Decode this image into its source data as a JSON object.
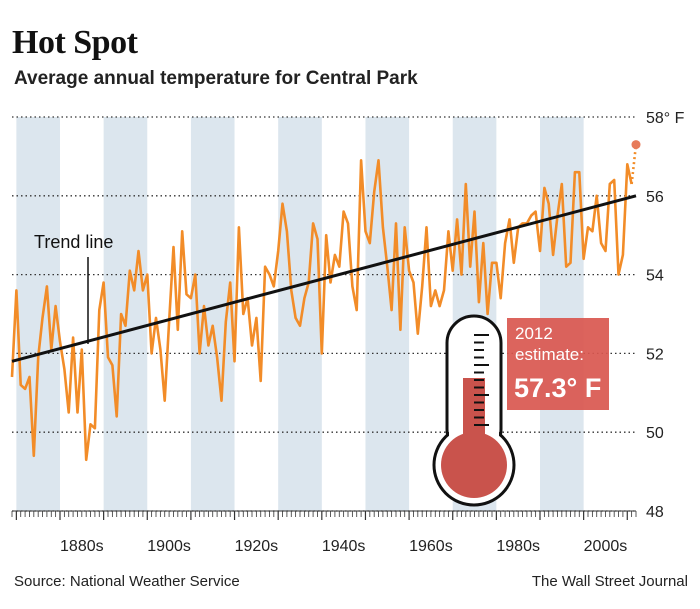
{
  "header": {
    "title": "Hot Spot",
    "subtitle": "Average annual temperature for Central Park"
  },
  "footer": {
    "source": "Source: National Weather Service",
    "credit": "The Wall Street Journal"
  },
  "annotations": {
    "trend_label": "Trend line",
    "estimate_year": "2012",
    "estimate_label": "estimate:",
    "estimate_value": "57.3° F"
  },
  "colors": {
    "series": "#f28c28",
    "trend": "#111111",
    "band": "#dce6ee",
    "callout": "#d9574f",
    "thermometer": "#c9534c"
  },
  "icons": {
    "thermometer": "thermometer-icon"
  },
  "chart_data": {
    "type": "line",
    "title": "Hot Spot",
    "subtitle": "Average annual temperature for Central Park",
    "xlim": [
      1869,
      2012
    ],
    "ylim": [
      48,
      58
    ],
    "y_ticks": [
      {
        "value": 58,
        "label": "58° F"
      },
      {
        "value": 56,
        "label": "56"
      },
      {
        "value": 54,
        "label": "54"
      },
      {
        "value": 52,
        "label": "52"
      },
      {
        "value": 50,
        "label": "50"
      },
      {
        "value": 48,
        "label": "48"
      }
    ],
    "x_ticks": [
      {
        "value": 1880,
        "label": "1880s"
      },
      {
        "value": 1900,
        "label": "1900s"
      },
      {
        "value": 1920,
        "label": "1920s"
      },
      {
        "value": 1940,
        "label": "1940s"
      },
      {
        "value": 1960,
        "label": "1960s"
      },
      {
        "value": 1980,
        "label": "1980s"
      },
      {
        "value": 2000,
        "label": "2000s"
      }
    ],
    "decade_bands": [
      1870,
      1890,
      1910,
      1930,
      1950,
      1970,
      1990
    ],
    "grid": "horizontal dotted",
    "series": [
      {
        "x": [
          1869,
          1870,
          1871,
          1872,
          1873,
          1874,
          1875,
          1876,
          1877,
          1878,
          1879,
          1880,
          1881,
          1882,
          1883,
          1884,
          1885,
          1886,
          1887,
          1888,
          1889,
          1890,
          1891,
          1892,
          1893,
          1894,
          1895,
          1896,
          1897,
          1898,
          1899,
          1900,
          1901,
          1902,
          1903,
          1904,
          1905,
          1906,
          1907,
          1908,
          1909,
          1910,
          1911,
          1912,
          1913,
          1914,
          1915,
          1916,
          1917,
          1918,
          1919,
          1920,
          1921,
          1922,
          1923,
          1924,
          1925,
          1926,
          1927,
          1928,
          1929,
          1930,
          1931,
          1932,
          1933,
          1934,
          1935,
          1936,
          1937,
          1938,
          1939,
          1940,
          1941,
          1942,
          1943,
          1944,
          1945,
          1946,
          1947,
          1948,
          1949,
          1950,
          1951,
          1952,
          1953,
          1954,
          1955,
          1956,
          1957,
          1958,
          1959,
          1960,
          1961,
          1962,
          1963,
          1964,
          1965,
          1966,
          1967,
          1968,
          1969,
          1970,
          1971,
          1972,
          1973,
          1974,
          1975,
          1976,
          1977,
          1978,
          1979,
          1980,
          1981,
          1982,
          1983,
          1984,
          1985,
          1986,
          1987,
          1988,
          1989,
          1990,
          1991,
          1992,
          1993,
          1994,
          1995,
          1996,
          1997,
          1998,
          1999,
          2000,
          2001,
          2002,
          2003,
          2004,
          2005,
          2006,
          2007,
          2008,
          2009,
          2010,
          2011
        ],
        "values": [
          51.4,
          53.6,
          51.2,
          51.1,
          51.4,
          49.4,
          51.9,
          52.9,
          53.7,
          52.1,
          53.2,
          52.3,
          51.6,
          50.5,
          52.4,
          50.5,
          52.1,
          49.3,
          50.2,
          50.1,
          53.1,
          53.8,
          51.9,
          51.7,
          50.4,
          53.0,
          52.7,
          54.1,
          53.6,
          54.6,
          53.6,
          54.0,
          52.0,
          52.9,
          52.1,
          50.8,
          52.8,
          54.7,
          52.6,
          55.1,
          53.5,
          53.4,
          54.0,
          52.0,
          53.2,
          52.2,
          52.7,
          51.9,
          50.8,
          52.8,
          53.8,
          51.8,
          55.2,
          53.0,
          53.4,
          52.2,
          52.9,
          51.3,
          54.2,
          54.0,
          53.7,
          54.6,
          55.8,
          55.1,
          53.6,
          52.9,
          52.7,
          53.4,
          53.8,
          55.3,
          54.9,
          52.0,
          55.0,
          53.8,
          54.5,
          54.2,
          55.6,
          55.3,
          53.7,
          53.1,
          56.9,
          55.1,
          54.8,
          56.1,
          56.9,
          55.2,
          54.2,
          53.1,
          55.3,
          52.6,
          55.2,
          54.1,
          53.8,
          52.5,
          53.7,
          55.2,
          53.2,
          53.6,
          53.2,
          53.6,
          55.1,
          54.1,
          55.4,
          54.0,
          56.3,
          54.2,
          55.6,
          53.3,
          54.8,
          53.0,
          54.3,
          54.3,
          53.4,
          54.8,
          55.4,
          54.3,
          55.2,
          55.3,
          55.3,
          55.5,
          55.6,
          54.6,
          56.2,
          55.8,
          54.5,
          55.5,
          56.3,
          54.2,
          54.3,
          56.6,
          56.6,
          54.4,
          55.2,
          55.1,
          56.0,
          54.8,
          54.6,
          56.3,
          56.4,
          54.0,
          54.5,
          56.8,
          56.3
        ]
      }
    ],
    "trend": {
      "x": [
        1869,
        2012
      ],
      "y": [
        51.8,
        56.0
      ]
    },
    "estimate": {
      "x": 2012,
      "y": 57.3
    }
  }
}
